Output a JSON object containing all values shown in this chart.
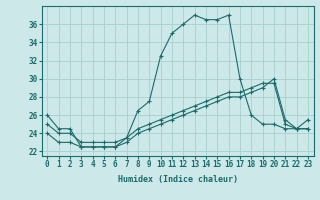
{
  "xlabel": "Humidex (Indice chaleur)",
  "background_color": "#cce8e8",
  "grid_color": "#aacfcf",
  "line_color": "#1a6b6b",
  "xlim": [
    -0.5,
    23.5
  ],
  "ylim": [
    21.5,
    38.0
  ],
  "xticks": [
    0,
    1,
    2,
    3,
    4,
    5,
    6,
    7,
    8,
    9,
    10,
    11,
    12,
    13,
    14,
    15,
    16,
    17,
    18,
    19,
    20,
    21,
    22,
    23
  ],
  "yticks": [
    22,
    24,
    26,
    28,
    30,
    32,
    34,
    36
  ],
  "series": [
    {
      "x": [
        0,
        1,
        2,
        3,
        4,
        5,
        6,
        7,
        8,
        9,
        10,
        11,
        12,
        13,
        14,
        15,
        16,
        17,
        18,
        19,
        20,
        21,
        22,
        23
      ],
      "y": [
        26,
        24.5,
        24.5,
        22.5,
        22.5,
        22.5,
        22.5,
        23.5,
        26.5,
        27.5,
        32.5,
        35,
        36,
        37,
        36.5,
        36.5,
        37,
        30,
        26,
        25,
        25,
        24.5,
        24.5,
        25.5
      ]
    },
    {
      "x": [
        0,
        1,
        2,
        3,
        4,
        5,
        6,
        7,
        8,
        9,
        10,
        11,
        12,
        13,
        14,
        15,
        16,
        17,
        18,
        19,
        20,
        21,
        22,
        23
      ],
      "y": [
        25,
        24,
        24,
        23,
        23,
        23,
        23,
        23.5,
        24.5,
        25,
        25.5,
        26,
        26.5,
        27,
        27.5,
        28,
        28.5,
        28.5,
        29,
        29.5,
        29.5,
        25,
        24.5,
        24.5
      ]
    },
    {
      "x": [
        0,
        1,
        2,
        3,
        4,
        5,
        6,
        7,
        8,
        9,
        10,
        11,
        12,
        13,
        14,
        15,
        16,
        17,
        18,
        19,
        20,
        21,
        22,
        23
      ],
      "y": [
        24,
        23,
        23,
        22.5,
        22.5,
        22.5,
        22.5,
        23,
        24,
        24.5,
        25,
        25.5,
        26,
        26.5,
        27,
        27.5,
        28,
        28,
        28.5,
        29,
        30,
        25.5,
        24.5,
        24.5
      ]
    }
  ]
}
